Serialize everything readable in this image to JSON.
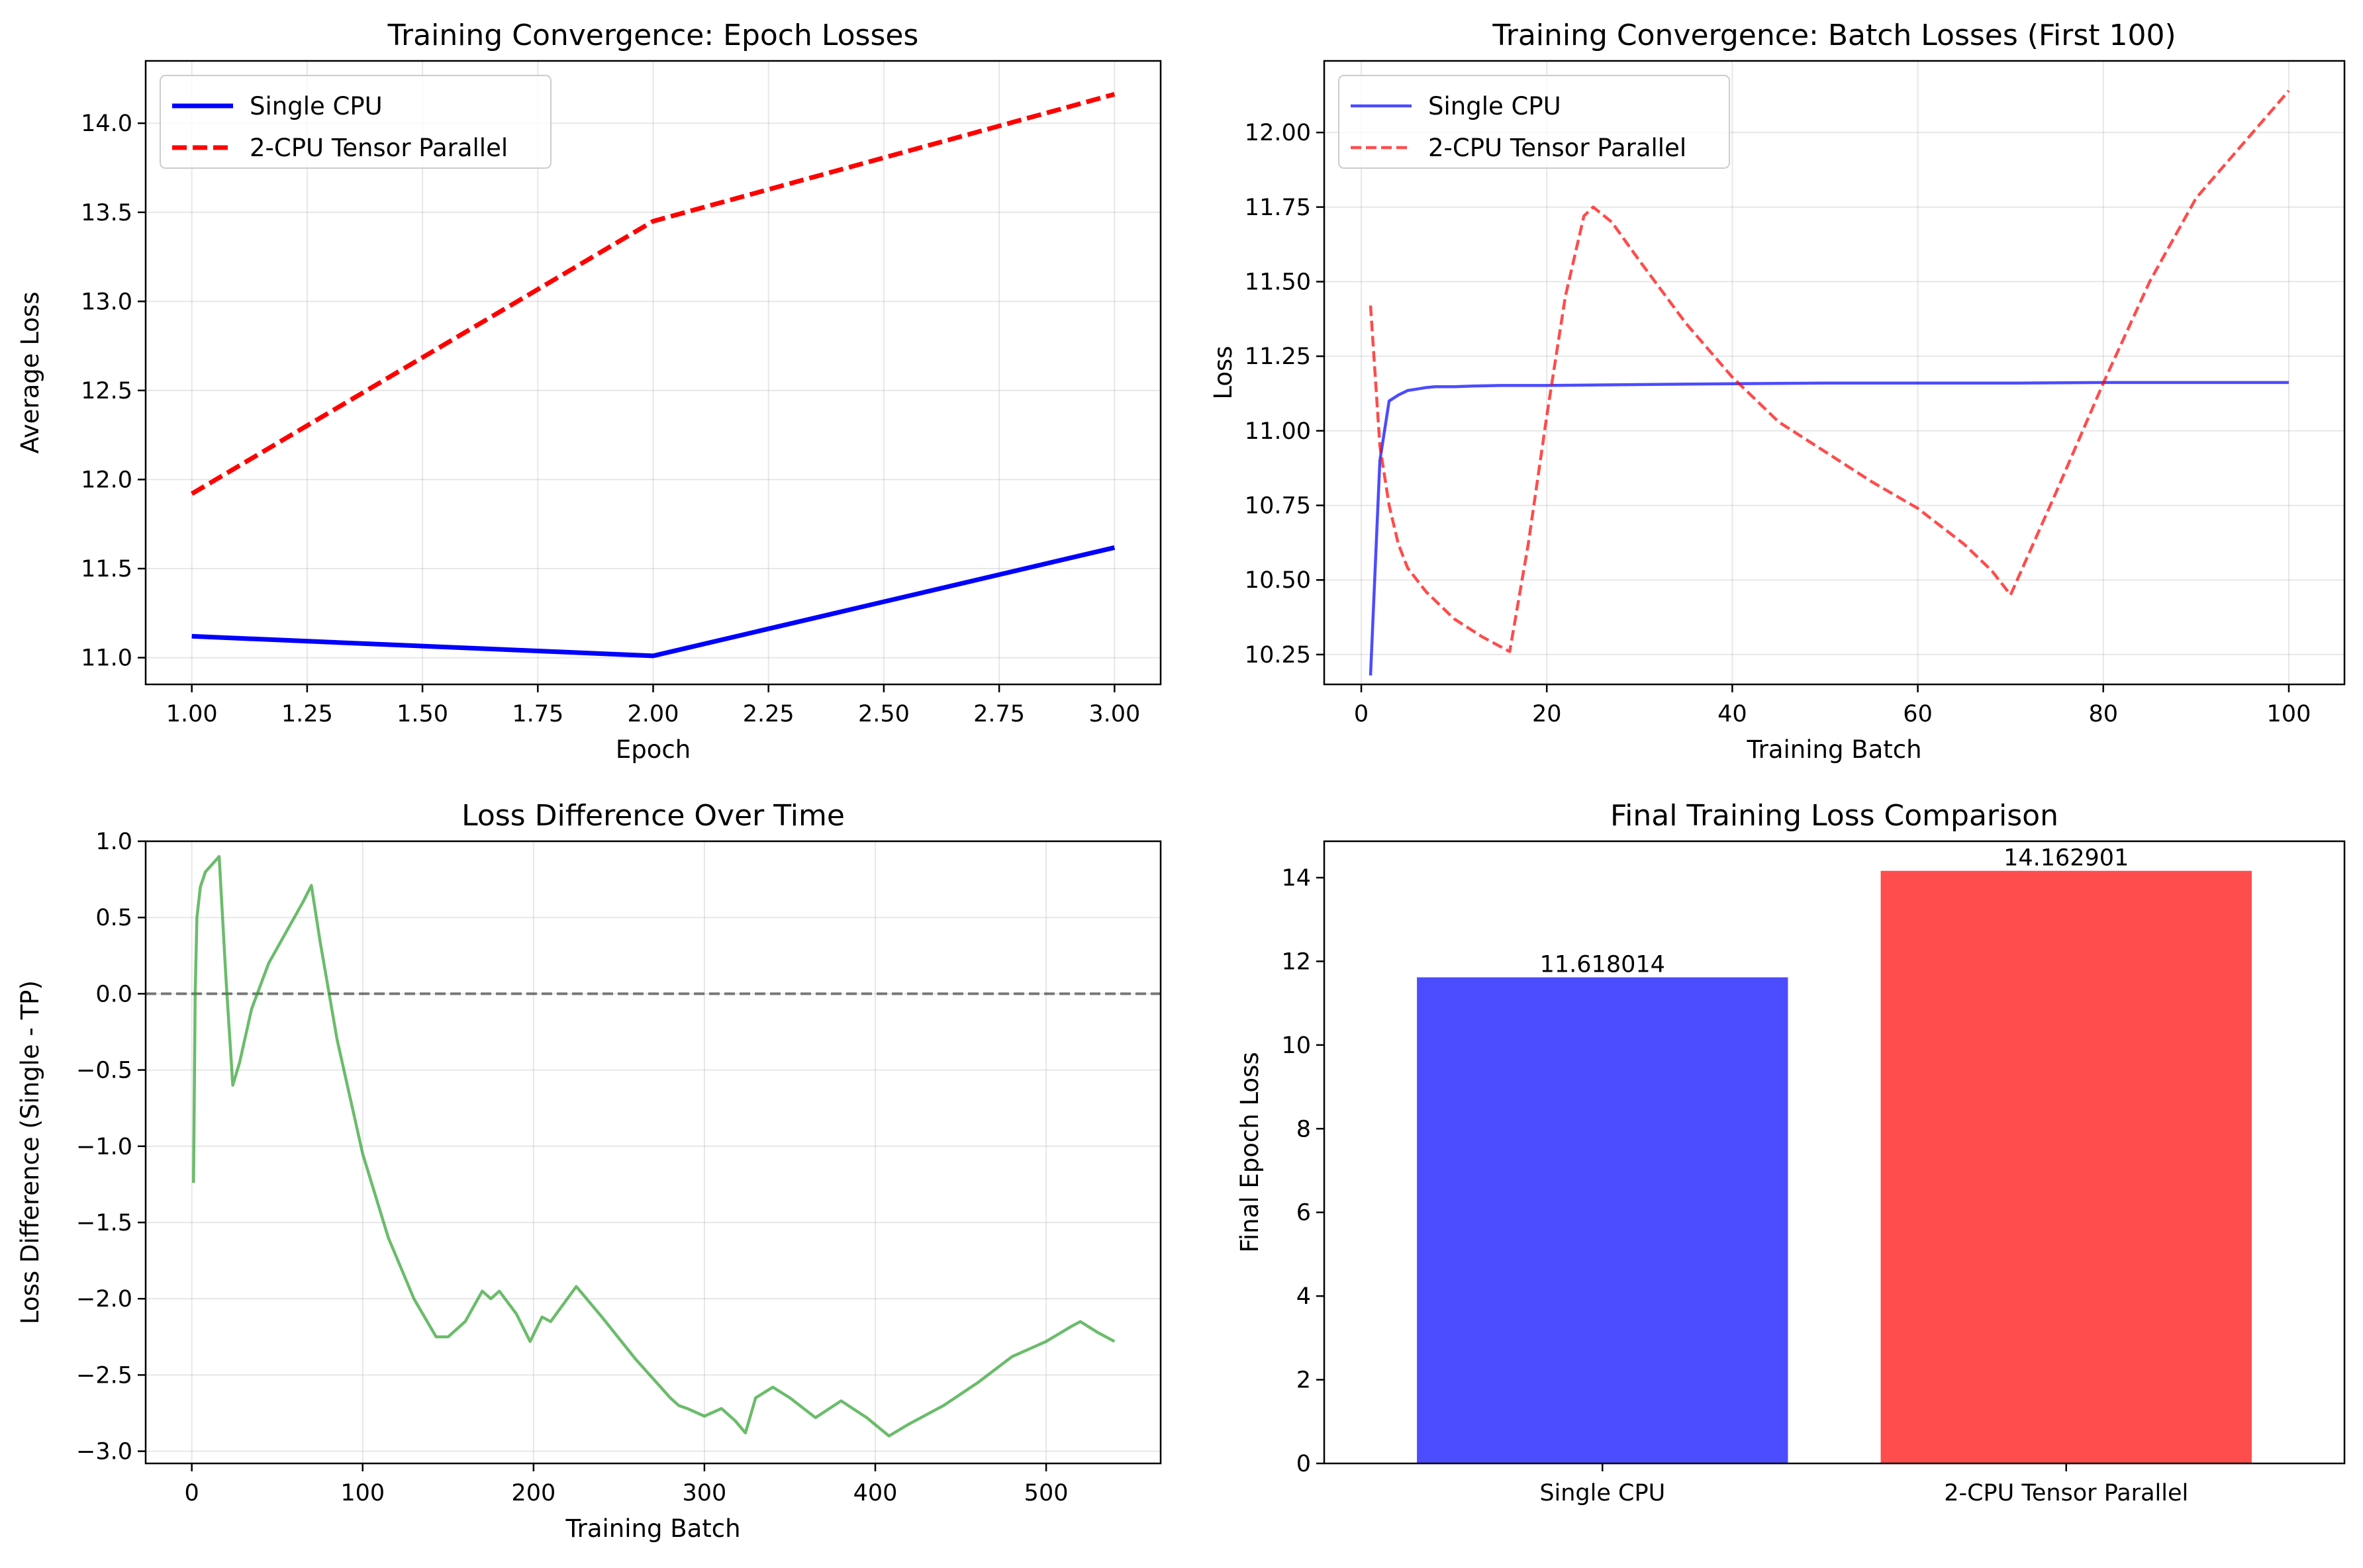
{
  "chart_data": [
    {
      "type": "line",
      "title": "Training Convergence: Epoch Losses",
      "xlabel": "Epoch",
      "ylabel": "Average Loss",
      "xlim": [
        0.9,
        3.1
      ],
      "ylim": [
        10.85,
        14.35
      ],
      "xticks": [
        1.0,
        1.25,
        1.5,
        1.75,
        2.0,
        2.25,
        2.5,
        2.75,
        3.0
      ],
      "xtick_labels": [
        "1.00",
        "1.25",
        "1.50",
        "1.75",
        "2.00",
        "2.25",
        "2.50",
        "2.75",
        "3.00"
      ],
      "yticks": [
        11.0,
        11.5,
        12.0,
        12.5,
        13.0,
        13.5,
        14.0
      ],
      "ytick_labels": [
        "11.0",
        "11.5",
        "12.0",
        "12.5",
        "13.0",
        "13.5",
        "14.0"
      ],
      "grid": true,
      "legend": "upper-left",
      "series": [
        {
          "name": "Single CPU",
          "color": "#0000ff",
          "dash": "solid",
          "x": [
            1,
            2,
            3
          ],
          "y": [
            11.12,
            11.01,
            11.618014
          ]
        },
        {
          "name": "2-CPU Tensor Parallel",
          "color": "#ff0000",
          "dash": "dashed",
          "x": [
            1,
            2,
            3
          ],
          "y": [
            11.92,
            13.45,
            14.162901
          ]
        }
      ]
    },
    {
      "type": "line",
      "title": "Training Convergence: Batch Losses (First 100)",
      "xlabel": "Training Batch",
      "ylabel": "Loss",
      "xlim": [
        -4,
        106
      ],
      "ylim": [
        10.15,
        12.24
      ],
      "xticks": [
        0,
        20,
        40,
        60,
        80,
        100
      ],
      "xtick_labels": [
        "0",
        "20",
        "40",
        "60",
        "80",
        "100"
      ],
      "yticks": [
        10.25,
        10.5,
        10.75,
        11.0,
        11.25,
        11.5,
        11.75,
        12.0
      ],
      "ytick_labels": [
        "10.25",
        "10.50",
        "10.75",
        "11.00",
        "11.25",
        "11.50",
        "11.75",
        "12.00"
      ],
      "grid": true,
      "legend": "upper-left",
      "series": [
        {
          "name": "Single CPU",
          "color": "#0000ff",
          "dash": "solid",
          "x": [
            1,
            2,
            3,
            4,
            5,
            6,
            7,
            8,
            10,
            12,
            15,
            20,
            30,
            40,
            50,
            60,
            70,
            80,
            90,
            100
          ],
          "y": [
            10.18,
            10.9,
            11.1,
            11.12,
            11.135,
            11.14,
            11.145,
            11.148,
            11.148,
            11.15,
            11.152,
            11.152,
            11.155,
            11.158,
            11.16,
            11.16,
            11.16,
            11.162,
            11.162,
            11.162
          ]
        },
        {
          "name": "2-CPU Tensor Parallel",
          "color": "#ff0000",
          "dash": "dashed",
          "x": [
            1,
            2,
            3,
            4,
            5,
            7,
            10,
            13,
            16,
            18,
            20,
            22,
            24,
            25,
            27,
            30,
            35,
            40,
            45,
            50,
            55,
            60,
            65,
            68,
            70,
            75,
            80,
            85,
            90,
            95,
            100
          ],
          "y": [
            11.42,
            10.95,
            10.75,
            10.62,
            10.54,
            10.46,
            10.37,
            10.31,
            10.26,
            10.62,
            11.05,
            11.45,
            11.72,
            11.75,
            11.7,
            11.57,
            11.36,
            11.18,
            11.03,
            10.93,
            10.83,
            10.74,
            10.62,
            10.53,
            10.45,
            10.8,
            11.16,
            11.5,
            11.78,
            11.96,
            12.14
          ]
        }
      ]
    },
    {
      "type": "line",
      "title": "Loss Difference Over Time",
      "xlabel": "Training Batch",
      "ylabel": "Loss Difference (Single - TP)",
      "xlim": [
        -27,
        567
      ],
      "ylim": [
        -3.08,
        1.0
      ],
      "xticks": [
        0,
        100,
        200,
        300,
        400,
        500
      ],
      "xtick_labels": [
        "0",
        "100",
        "200",
        "300",
        "400",
        "500"
      ],
      "yticks": [
        -3.0,
        -2.5,
        -2.0,
        -1.5,
        -1.0,
        -0.5,
        0.0,
        0.5,
        1.0
      ],
      "ytick_labels": [
        "−3.0",
        "−2.5",
        "−2.0",
        "−1.5",
        "−1.0",
        "−0.5",
        "0.0",
        "0.5",
        "1.0"
      ],
      "grid": true,
      "reference_line": 0,
      "series": [
        {
          "name": "",
          "color": "#2ca02c",
          "dash": "solid",
          "x": [
            1,
            2,
            3,
            5,
            8,
            12,
            16,
            20,
            24,
            28,
            35,
            45,
            55,
            65,
            70,
            75,
            85,
            100,
            115,
            130,
            143,
            150,
            160,
            170,
            175,
            180,
            190,
            198,
            205,
            210,
            225,
            240,
            260,
            280,
            285,
            290,
            300,
            310,
            318,
            324,
            330,
            340,
            350,
            365,
            380,
            395,
            408,
            420,
            440,
            460,
            480,
            500,
            515,
            520,
            530,
            540
          ],
          "y": [
            -1.24,
            0.0,
            0.5,
            0.7,
            0.8,
            0.85,
            0.9,
            0.1,
            -0.6,
            -0.45,
            -0.1,
            0.2,
            0.4,
            0.6,
            0.71,
            0.35,
            -0.3,
            -1.05,
            -1.6,
            -2.0,
            -2.25,
            -2.25,
            -2.15,
            -1.95,
            -2.0,
            -1.95,
            -2.1,
            -2.28,
            -2.12,
            -2.15,
            -1.92,
            -2.12,
            -2.4,
            -2.65,
            -2.7,
            -2.72,
            -2.77,
            -2.72,
            -2.8,
            -2.88,
            -2.65,
            -2.58,
            -2.65,
            -2.78,
            -2.67,
            -2.78,
            -2.9,
            -2.82,
            -2.7,
            -2.55,
            -2.38,
            -2.28,
            -2.18,
            -2.15,
            -2.22,
            -2.28
          ]
        }
      ]
    },
    {
      "type": "bar",
      "title": "Final Training Loss Comparison",
      "xlabel": "",
      "ylabel": "Final Epoch Loss",
      "ylim": [
        0,
        14.87
      ],
      "yticks": [
        0,
        2,
        4,
        6,
        8,
        10,
        12,
        14
      ],
      "ytick_labels": [
        "0",
        "2",
        "4",
        "6",
        "8",
        "10",
        "12",
        "14"
      ],
      "grid": false,
      "categories": [
        "Single CPU",
        "2-CPU Tensor Parallel"
      ],
      "values": [
        11.618014,
        14.162901
      ],
      "value_labels": [
        "11.618014",
        "14.162901"
      ],
      "colors": [
        "#4c4cff",
        "#ff4c4c"
      ]
    }
  ]
}
